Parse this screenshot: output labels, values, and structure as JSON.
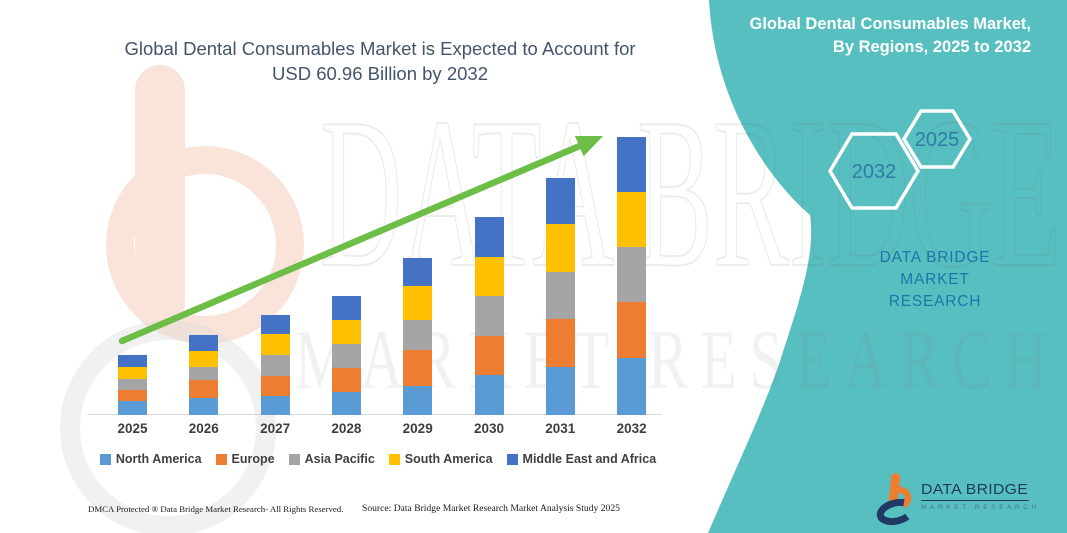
{
  "title": {
    "line1": "Global Dental Consumables Market is Expected to Account for",
    "line2": "USD 60.96 Billion by 2032"
  },
  "chart_data": {
    "type": "bar",
    "stacked": true,
    "title": "Global Dental Consumables Market is Expected to Account for USD 60.96 Billion by 2032",
    "categories": [
      "2025",
      "2026",
      "2027",
      "2028",
      "2029",
      "2030",
      "2031",
      "2032"
    ],
    "series": [
      {
        "name": "North America",
        "color": "#5B9BD5",
        "values": [
          3.1,
          3.7,
          4.2,
          5.1,
          6.4,
          8.7,
          10.5,
          12.5
        ]
      },
      {
        "name": "Europe",
        "color": "#ED7D31",
        "values": [
          2.4,
          3.9,
          4.4,
          5.3,
          7.9,
          8.7,
          10.5,
          12.3
        ]
      },
      {
        "name": "Asia Pacific",
        "color": "#A5A5A5",
        "values": [
          2.4,
          2.9,
          4.6,
          5.1,
          6.6,
          8.7,
          10.3,
          12.1
        ]
      },
      {
        "name": "South America",
        "color": "#FFC000",
        "values": [
          2.6,
          3.5,
          4.6,
          5.4,
          7.5,
          8.7,
          10.5,
          12.1
        ]
      },
      {
        "name": "Middle East and Africa",
        "color": "#4472C4",
        "values": [
          2.7,
          3.5,
          4.2,
          5.3,
          6.1,
          8.7,
          10.3,
          12.0
        ]
      }
    ],
    "totals": [
      13.2,
      17.5,
      22.0,
      26.2,
      34.5,
      43.5,
      52.1,
      61.0
    ],
    "unit": "USD Billion (estimated from bar heights; only the 2032 total of 60.96 is labeled)",
    "xlabel": "",
    "ylabel": "",
    "gridlines": false,
    "axis_value_labels_visible": false,
    "legend_position": "bottom",
    "trend_arrow": true
  },
  "footer": {
    "left": "DMCA Protected ® Data Bridge Market Research- All Rights Reserved.",
    "right": "Source: Data Bridge Market Research Market Analysis Study 2025"
  },
  "panel": {
    "title_line1": "Global Dental Consumables Market,",
    "title_line2": "By Regions, 2025 to 2032",
    "hexagon_back_label": "2032",
    "hexagon_front_label": "2025",
    "brand_line1": "DATA BRIDGE MARKET",
    "brand_line2": "RESEARCH"
  },
  "logo": {
    "title": "DATA BRIDGE",
    "subtitle": "MARKET RESEARCH"
  },
  "watermark": {
    "line1": "DATA BRIDGE",
    "line2": "MARKET RESEARCH"
  },
  "colors": {
    "teal_panel": "#58BFC1",
    "chart_title_text": "#44546A",
    "panel_brand_text": "#1878A8",
    "hexagon_year_text": "#2E7BA6",
    "arrow_green": "#6CBE46",
    "axis_line": "#D9D9D9",
    "year_label": "#3F3F3F",
    "logo_navy": "#1B3A5C",
    "logo_orange": "#ED7D31",
    "watermark_peach": "#FAE4DA"
  }
}
